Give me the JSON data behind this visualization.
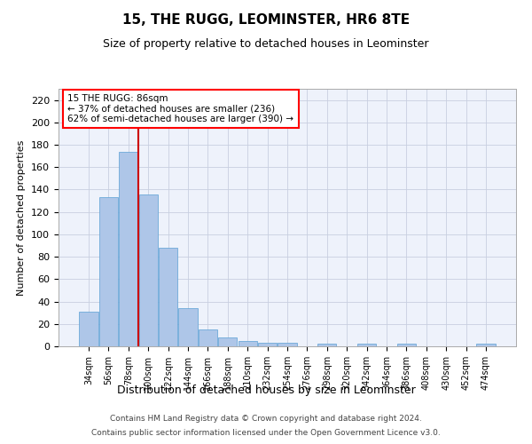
{
  "title": "15, THE RUGG, LEOMINSTER, HR6 8TE",
  "subtitle": "Size of property relative to detached houses in Leominster",
  "xlabel": "Distribution of detached houses by size in Leominster",
  "ylabel": "Number of detached properties",
  "categories": [
    "34sqm",
    "56sqm",
    "78sqm",
    "100sqm",
    "122sqm",
    "144sqm",
    "166sqm",
    "188sqm",
    "210sqm",
    "232sqm",
    "254sqm",
    "276sqm",
    "298sqm",
    "320sqm",
    "342sqm",
    "364sqm",
    "386sqm",
    "408sqm",
    "430sqm",
    "452sqm",
    "474sqm"
  ],
  "values": [
    31,
    133,
    174,
    136,
    88,
    34,
    15,
    8,
    5,
    3,
    3,
    0,
    2,
    0,
    2,
    0,
    2,
    0,
    0,
    0,
    2
  ],
  "bar_color": "#aec6e8",
  "bar_edge_color": "#5a9fd4",
  "property_bin_index": 2,
  "annotation_line1": "15 THE RUGG: 86sqm",
  "annotation_line2": "← 37% of detached houses are smaller (236)",
  "annotation_line3": "62% of semi-detached houses are larger (390) →",
  "annotation_box_color": "white",
  "annotation_box_edge_color": "red",
  "red_line_color": "#cc0000",
  "ylim": [
    0,
    230
  ],
  "yticks": [
    0,
    20,
    40,
    60,
    80,
    100,
    120,
    140,
    160,
    180,
    200,
    220
  ],
  "footer_line1": "Contains HM Land Registry data © Crown copyright and database right 2024.",
  "footer_line2": "Contains public sector information licensed under the Open Government Licence v3.0.",
  "background_color": "#eef2fb",
  "grid_color": "#c8cfe0",
  "title_fontsize": 11,
  "subtitle_fontsize": 9,
  "xlabel_fontsize": 9,
  "ylabel_fontsize": 8,
  "tick_fontsize": 8,
  "xtick_fontsize": 7,
  "footer_fontsize": 6.5
}
